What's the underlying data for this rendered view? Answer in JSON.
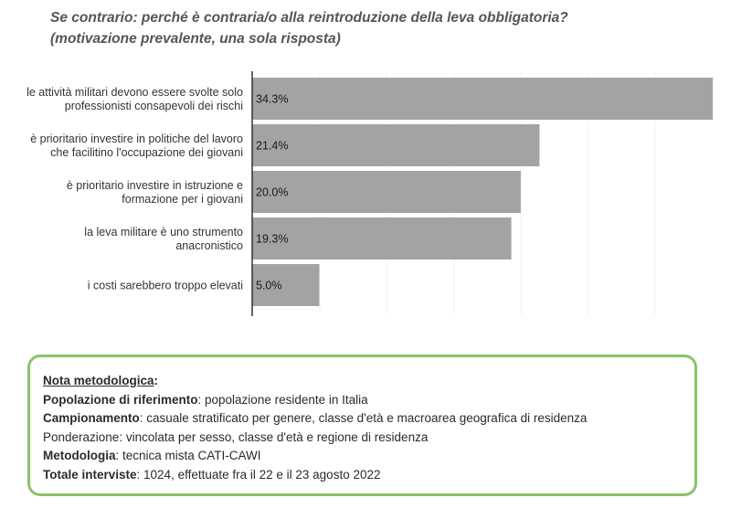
{
  "title_line1": "Se contrario: perché è contraria/o alla reintroduzione della leva obbligatoria?",
  "title_line2": "(motivazione prevalente, una sola risposta)",
  "chart_data": {
    "type": "bar",
    "orientation": "horizontal",
    "categories": [
      [
        "le attività militari devono essere svolte solo",
        "professionisti consapevoli dei rischi"
      ],
      [
        "è prioritario investire in politiche del lavoro",
        "che facilitino l'occupazione dei giovani"
      ],
      [
        "è prioritario investire in istruzione e",
        "formazione per i giovani"
      ],
      [
        "la leva militare è uno strumento",
        "anacronistico"
      ],
      [
        "i costi sarebbero troppo elevati"
      ]
    ],
    "values": [
      34.3,
      21.4,
      20.0,
      19.3,
      5.0
    ],
    "value_labels": [
      "34.3%",
      "21.4%",
      "20.0%",
      "19.3%",
      "5.0%"
    ],
    "unit": "%",
    "xlim": [
      0,
      34.3
    ],
    "bar_color": "#a3a3a3"
  },
  "note": {
    "heading": "Nota metodologica",
    "heading_suffix": ":",
    "lines": [
      {
        "key": "Popolazione di riferimento",
        "value": ": popolazione residente in Italia"
      },
      {
        "key": "Campionamento",
        "value": ": casuale stratificato per genere, classe d'età e macroarea geografica di residenza"
      },
      {
        "key": "",
        "value": "Ponderazione: vincolata per sesso, classe d'età e regione di residenza"
      },
      {
        "key": "Metodologia",
        "value": ": tecnica mista CATI-CAWI"
      },
      {
        "key": "Totale interviste",
        "value": ": 1024, effettuate fra il 22 e il 23 agosto 2022"
      }
    ]
  }
}
